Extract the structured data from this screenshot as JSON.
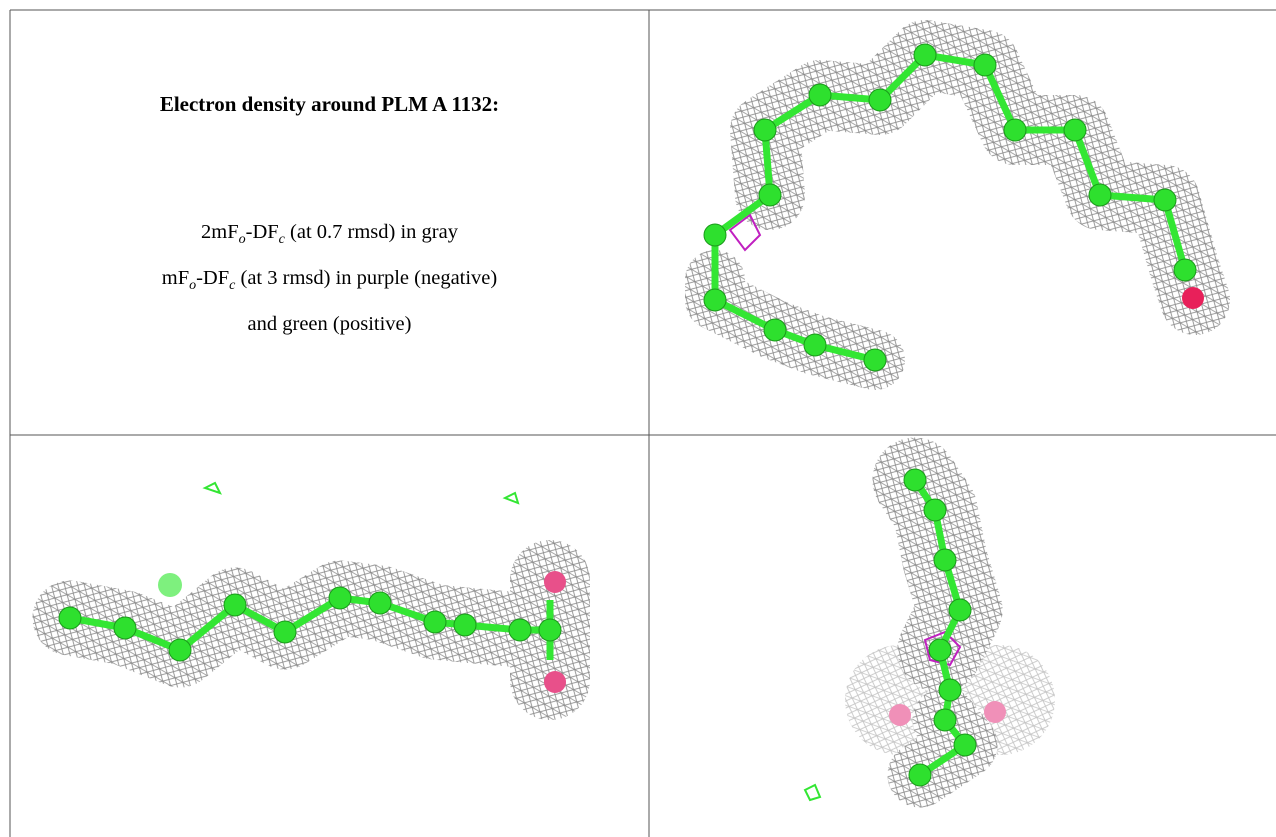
{
  "caption": {
    "title": "Electron density around PLM A 1132:",
    "lines": [
      {
        "parts": [
          "2mF",
          "o",
          "-DF",
          "c",
          " (at 0.7 rmsd) in gray"
        ]
      },
      {
        "parts": [
          "mF",
          "o",
          "-DF",
          "c",
          " (at 3 rmsd) in purple (negative)"
        ]
      },
      {
        "parts": [
          "and green (positive)"
        ]
      }
    ]
  }
}
